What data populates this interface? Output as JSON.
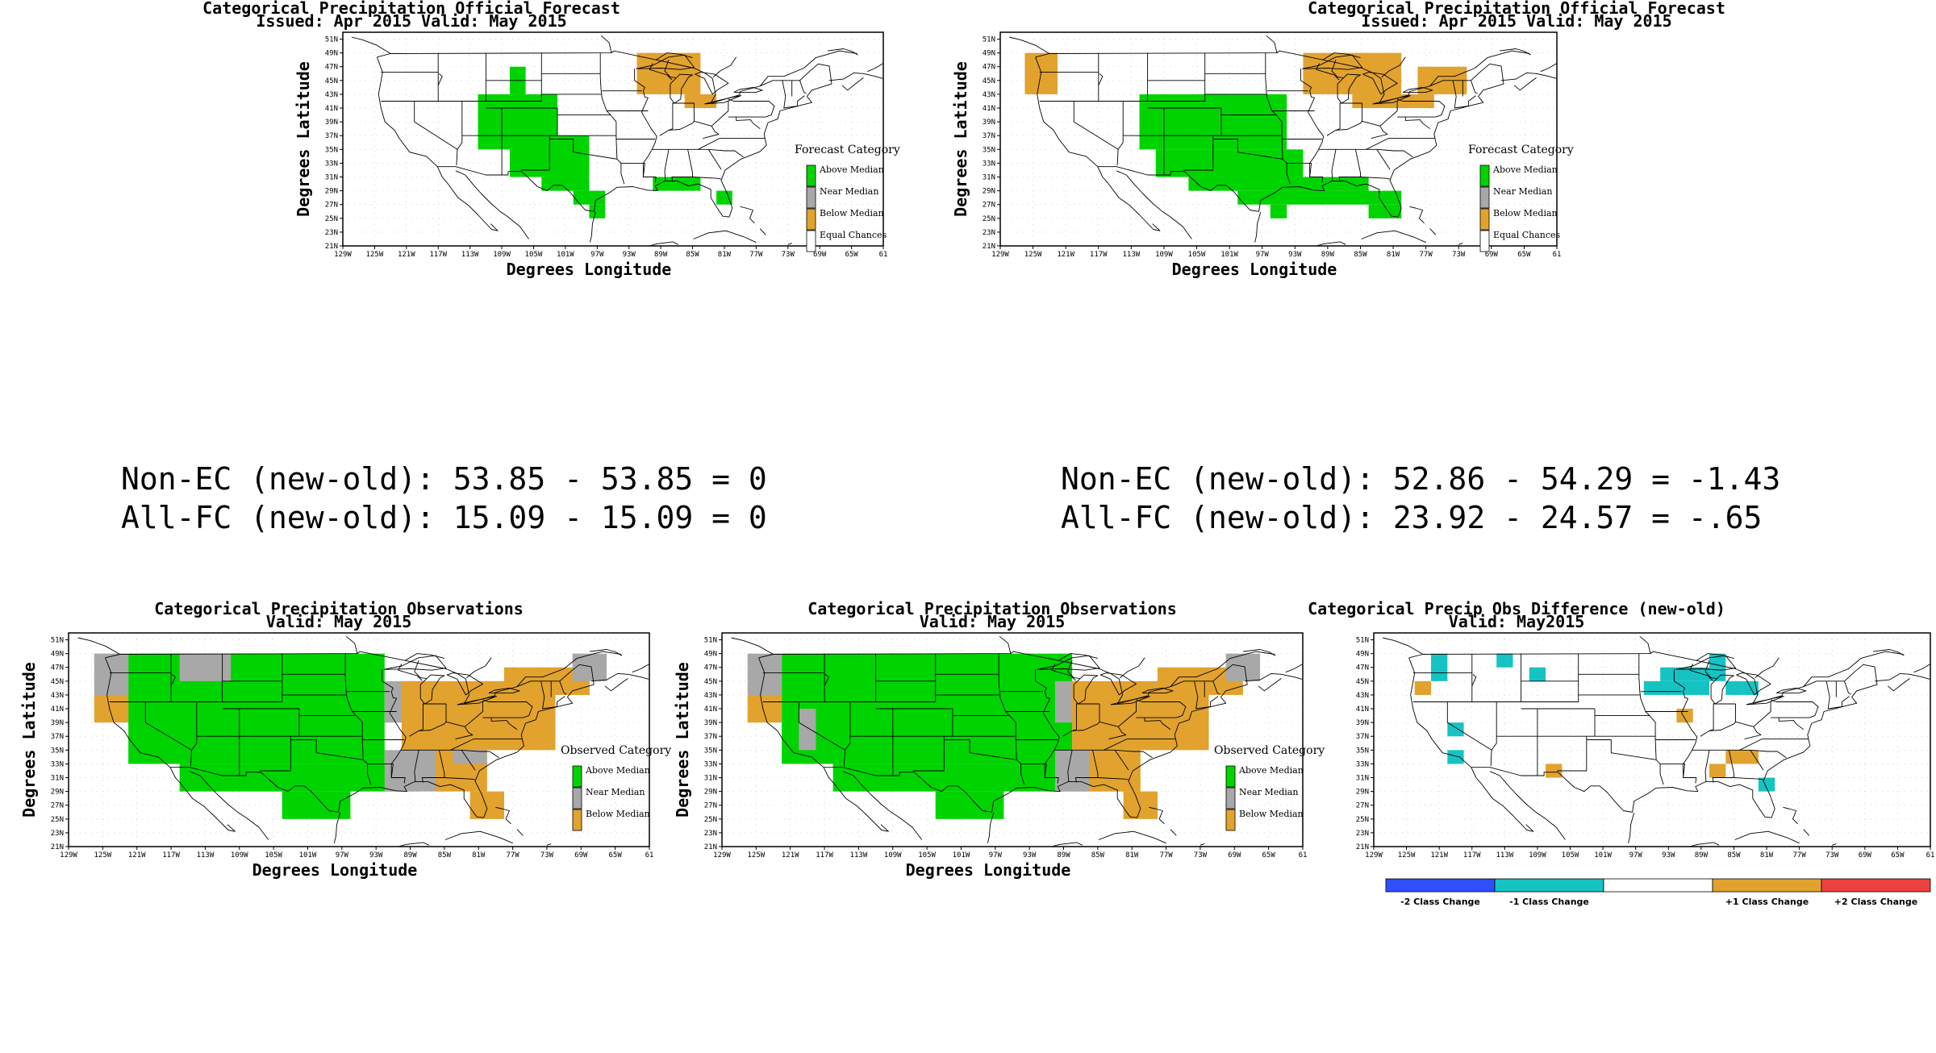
{
  "colors": {
    "above": "#00d400",
    "near": "#a8a8a8",
    "below": "#e1a22e",
    "minus2": "#2f4fff",
    "minus1": "#16c3c3",
    "plus1": "#e1a22e",
    "plus2": "#ef4040"
  },
  "axis_labels": {
    "lat": [
      "51N",
      "49N",
      "47N",
      "45N",
      "43N",
      "41N",
      "39N",
      "37N",
      "35N",
      "33N",
      "31N",
      "29N",
      "27N",
      "25N",
      "23N",
      "21N"
    ],
    "lon": [
      "129W",
      "125W",
      "121W",
      "117W",
      "113W",
      "109W",
      "105W",
      "101W",
      "97W",
      "93W",
      "89W",
      "85W",
      "81W",
      "77W",
      "73W",
      "69W",
      "65W",
      "61"
    ]
  },
  "panels": [
    {
      "id": "forecast-old",
      "title": "Categorical Precipitation Official Forecast",
      "subtitle": "Issued: Apr 2015 Valid: May 2015",
      "xlabel": "Degrees Longitude",
      "ylabel": "Degrees Latitude",
      "legend": {
        "title": "Forecast Category",
        "items": [
          "Above Median",
          "Near Median",
          "Below Median",
          "Equal Chances"
        ]
      },
      "cells": [
        {
          "c": "above",
          "lon": [
            -108,
            -106
          ],
          "lat": [
            43,
            47
          ]
        },
        {
          "c": "above",
          "lon": [
            -112,
            -102
          ],
          "lat": [
            35,
            43
          ]
        },
        {
          "c": "above",
          "lon": [
            -108,
            -98
          ],
          "lat": [
            31,
            37
          ]
        },
        {
          "c": "above",
          "lon": [
            -104,
            -98
          ],
          "lat": [
            29,
            31
          ]
        },
        {
          "c": "above",
          "lon": [
            -100,
            -96
          ],
          "lat": [
            27,
            29
          ]
        },
        {
          "c": "above",
          "lon": [
            -98,
            -96
          ],
          "lat": [
            25,
            27
          ]
        },
        {
          "c": "above",
          "lon": [
            -90,
            -84
          ],
          "lat": [
            29,
            31
          ]
        },
        {
          "c": "above",
          "lon": [
            -82,
            -80
          ],
          "lat": [
            27,
            29
          ]
        },
        {
          "c": "below",
          "lon": [
            -92,
            -84
          ],
          "lat": [
            43,
            49
          ]
        },
        {
          "c": "below",
          "lon": [
            -86,
            -82
          ],
          "lat": [
            41,
            43
          ]
        }
      ]
    },
    {
      "id": "forecast-new",
      "title": "Categorical Precipitation Official Forecast",
      "subtitle": "Issued: Apr 2015 Valid: May 2015",
      "xlabel": "Degrees Longitude",
      "ylabel": "Degrees Latitude",
      "legend": {
        "title": "Forecast Category",
        "items": [
          "Above Median",
          "Near Median",
          "Below Median",
          "Equal Chances"
        ]
      },
      "cells": [
        {
          "c": "above",
          "lon": [
            -112,
            -94
          ],
          "lat": [
            35,
            43
          ]
        },
        {
          "c": "above",
          "lon": [
            -110,
            -92
          ],
          "lat": [
            31,
            35
          ]
        },
        {
          "c": "above",
          "lon": [
            -106,
            -84
          ],
          "lat": [
            29,
            31
          ]
        },
        {
          "c": "above",
          "lon": [
            -100,
            -80
          ],
          "lat": [
            27,
            29
          ]
        },
        {
          "c": "above",
          "lon": [
            -96,
            -94
          ],
          "lat": [
            25,
            27
          ]
        },
        {
          "c": "above",
          "lon": [
            -84,
            -80
          ],
          "lat": [
            25,
            27
          ]
        },
        {
          "c": "below",
          "lon": [
            -126,
            -122
          ],
          "lat": [
            43,
            49
          ]
        },
        {
          "c": "below",
          "lon": [
            -92,
            -80
          ],
          "lat": [
            43,
            49
          ]
        },
        {
          "c": "below",
          "lon": [
            -86,
            -76
          ],
          "lat": [
            41,
            43
          ]
        },
        {
          "c": "below",
          "lon": [
            -78,
            -72
          ],
          "lat": [
            43,
            47
          ]
        }
      ]
    },
    {
      "id": "obs-old",
      "title": "Categorical Precipitation Observations",
      "subtitle": "Valid: May 2015",
      "xlabel": "Degrees Longitude",
      "ylabel": "Degrees Latitude",
      "legend": {
        "title": "Observed Category",
        "items": [
          "Above Median",
          "Near Median",
          "Below Median"
        ]
      },
      "cells": [
        {
          "c": "above",
          "lon": [
            -122,
            -92
          ],
          "lat": [
            33,
            49
          ]
        },
        {
          "c": "above",
          "lon": [
            -116,
            -88
          ],
          "lat": [
            29,
            33
          ]
        },
        {
          "c": "above",
          "lon": [
            -104,
            -96
          ],
          "lat": [
            25,
            29
          ]
        },
        {
          "c": "near",
          "lon": [
            -126,
            -122
          ],
          "lat": [
            43,
            49
          ]
        },
        {
          "c": "below",
          "lon": [
            -126,
            -122
          ],
          "lat": [
            39,
            43
          ]
        },
        {
          "c": "near",
          "lon": [
            -116,
            -110
          ],
          "lat": [
            45,
            49
          ]
        },
        {
          "c": "near",
          "lon": [
            -92,
            -86
          ],
          "lat": [
            39,
            45
          ]
        },
        {
          "c": "near",
          "lon": [
            -92,
            -84
          ],
          "lat": [
            29,
            35
          ]
        },
        {
          "c": "below",
          "lon": [
            -90,
            -72
          ],
          "lat": [
            35,
            45
          ]
        },
        {
          "c": "below",
          "lon": [
            -78,
            -68
          ],
          "lat": [
            43,
            47
          ]
        },
        {
          "c": "near",
          "lon": [
            -70,
            -66
          ],
          "lat": [
            45,
            49
          ]
        },
        {
          "c": "below",
          "lon": [
            -86,
            -80
          ],
          "lat": [
            29,
            35
          ]
        },
        {
          "c": "below",
          "lon": [
            -82,
            -78
          ],
          "lat": [
            25,
            29
          ]
        },
        {
          "c": "near",
          "lon": [
            -84,
            -80
          ],
          "lat": [
            33,
            35
          ]
        }
      ]
    },
    {
      "id": "obs-new",
      "title": "Categorical Precipitation Observations",
      "subtitle": "Valid: May 2015",
      "xlabel": "Degrees Longitude",
      "ylabel": "Degrees Latitude",
      "legend": {
        "title": "Observed Category",
        "items": [
          "Above Median",
          "Near Median",
          "Below Median"
        ]
      },
      "cells": [
        {
          "c": "above",
          "lon": [
            -122,
            -88
          ],
          "lat": [
            33,
            49
          ]
        },
        {
          "c": "above",
          "lon": [
            -116,
            -86
          ],
          "lat": [
            29,
            33
          ]
        },
        {
          "c": "above",
          "lon": [
            -104,
            -96
          ],
          "lat": [
            25,
            29
          ]
        },
        {
          "c": "near",
          "lon": [
            -126,
            -122
          ],
          "lat": [
            43,
            49
          ]
        },
        {
          "c": "below",
          "lon": [
            -126,
            -122
          ],
          "lat": [
            39,
            43
          ]
        },
        {
          "c": "near",
          "lon": [
            -120,
            -118
          ],
          "lat": [
            35,
            41
          ]
        },
        {
          "c": "near",
          "lon": [
            -90,
            -86
          ],
          "lat": [
            39,
            45
          ]
        },
        {
          "c": "near",
          "lon": [
            -90,
            -82
          ],
          "lat": [
            29,
            35
          ]
        },
        {
          "c": "below",
          "lon": [
            -88,
            -72
          ],
          "lat": [
            35,
            45
          ]
        },
        {
          "c": "below",
          "lon": [
            -78,
            -68
          ],
          "lat": [
            43,
            47
          ]
        },
        {
          "c": "near",
          "lon": [
            -70,
            -66
          ],
          "lat": [
            45,
            49
          ]
        },
        {
          "c": "below",
          "lon": [
            -86,
            -80
          ],
          "lat": [
            29,
            35
          ]
        },
        {
          "c": "below",
          "lon": [
            -82,
            -78
          ],
          "lat": [
            25,
            29
          ]
        }
      ]
    },
    {
      "id": "obs-diff",
      "title": "Categorical Precip Obs Difference (new-old)",
      "subtitle": "Valid: May2015",
      "xlabel": "",
      "ylabel": "",
      "legend": null,
      "cells": [
        {
          "c": "minus1",
          "lon": [
            -122,
            -120
          ],
          "lat": [
            45,
            49
          ]
        },
        {
          "c": "minus1",
          "lon": [
            -114,
            -112
          ],
          "lat": [
            47,
            49
          ]
        },
        {
          "c": "minus1",
          "lon": [
            -110,
            -108
          ],
          "lat": [
            45,
            47
          ]
        },
        {
          "c": "minus1",
          "lon": [
            -120,
            -118
          ],
          "lat": [
            37,
            39
          ]
        },
        {
          "c": "minus1",
          "lon": [
            -120,
            -118
          ],
          "lat": [
            33,
            35
          ]
        },
        {
          "c": "minus1",
          "lon": [
            -96,
            -88
          ],
          "lat": [
            43,
            45
          ]
        },
        {
          "c": "minus1",
          "lon": [
            -94,
            -86
          ],
          "lat": [
            45,
            47
          ]
        },
        {
          "c": "minus1",
          "lon": [
            -88,
            -86
          ],
          "lat": [
            47,
            49
          ]
        },
        {
          "c": "minus1",
          "lon": [
            -86,
            -84
          ],
          "lat": [
            43,
            45
          ]
        },
        {
          "c": "minus1",
          "lon": [
            -84,
            -82
          ],
          "lat": [
            43,
            45
          ]
        },
        {
          "c": "minus1",
          "lon": [
            -82,
            -80
          ],
          "lat": [
            29,
            31
          ]
        },
        {
          "c": "plus1",
          "lon": [
            -124,
            -122
          ],
          "lat": [
            43,
            45
          ]
        },
        {
          "c": "plus1",
          "lon": [
            -108,
            -106
          ],
          "lat": [
            31,
            33
          ]
        },
        {
          "c": "plus1",
          "lon": [
            -92,
            -90
          ],
          "lat": [
            39,
            41
          ]
        },
        {
          "c": "plus1",
          "lon": [
            -88,
            -86
          ],
          "lat": [
            31,
            33
          ]
        },
        {
          "c": "plus1",
          "lon": [
            -86,
            -82
          ],
          "lat": [
            33,
            35
          ]
        }
      ]
    }
  ],
  "stats": {
    "old": {
      "line1": "Non-EC (new-old): 53.85 - 53.85 = 0",
      "line2": "All-FC (new-old): 15.09 - 15.09 = 0"
    },
    "new": {
      "line1": "Non-EC (new-old): 52.86 - 54.29 = -1.43",
      "line2": "All-FC (new-old): 23.92 - 24.57 = -.65"
    }
  },
  "diff_bar": {
    "ticks": [
      "-2 Class Change",
      "-1 Class Change",
      "+1 Class Change",
      "+2 Class Change"
    ]
  }
}
